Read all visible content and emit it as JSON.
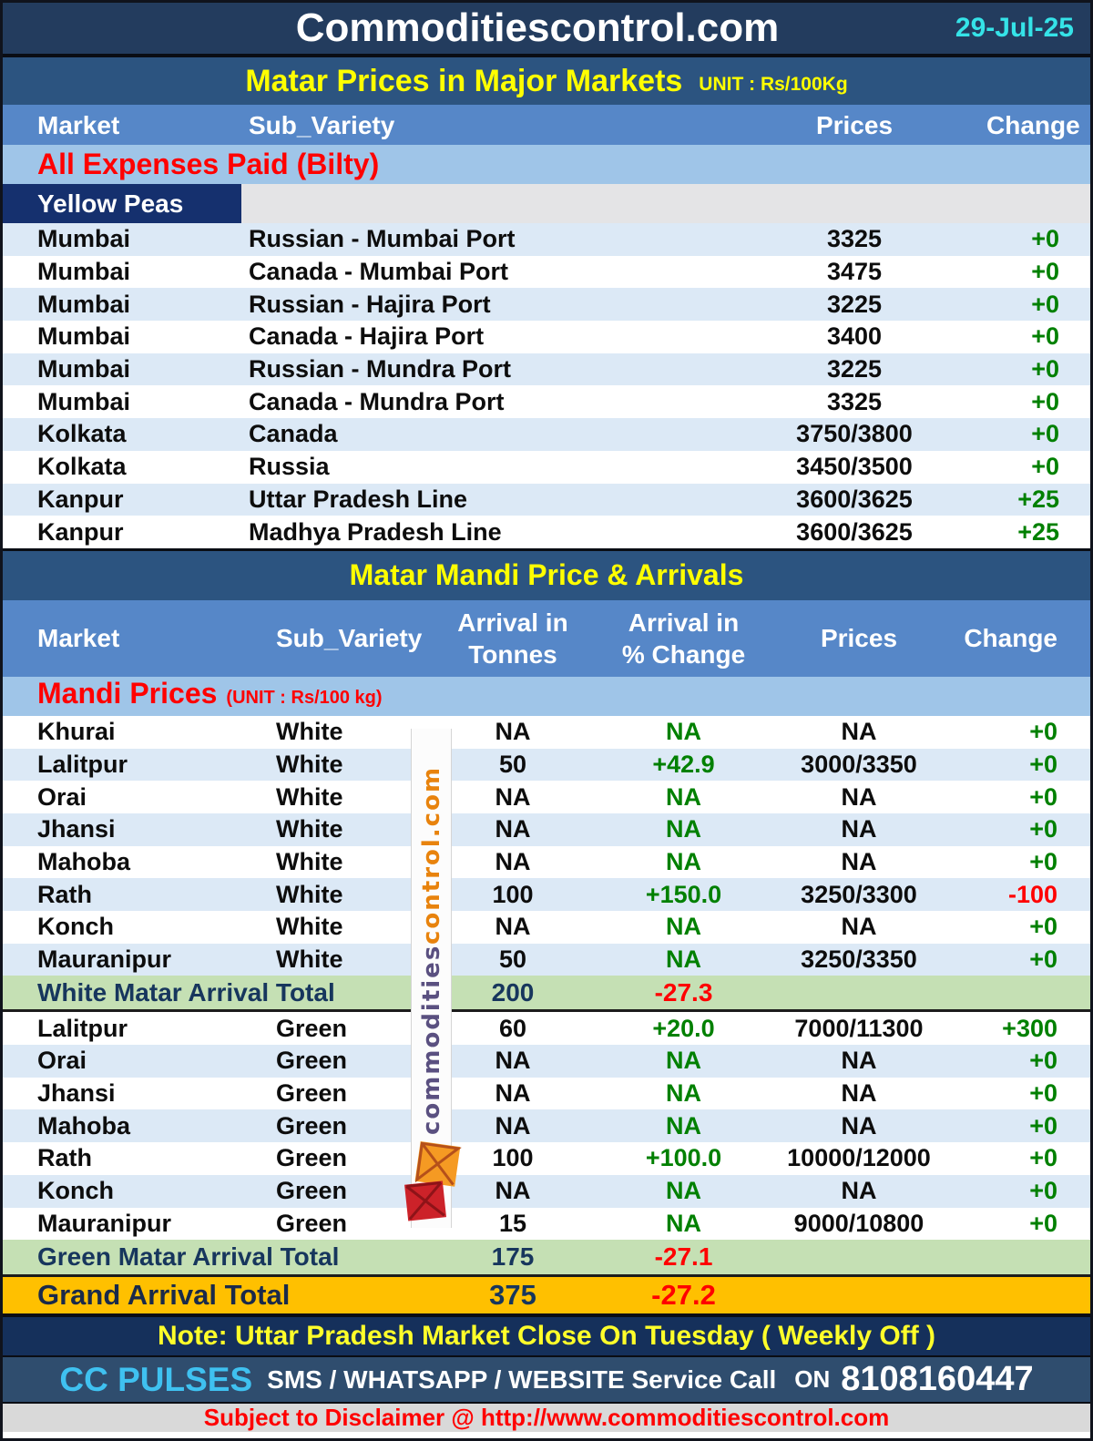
{
  "header": {
    "brand": "Commoditiescontrol.com",
    "date": "29-Jul-25"
  },
  "table1": {
    "title": "Matar Prices in Major Markets",
    "unit": "UNIT : Rs/100Kg",
    "columns": [
      "Market",
      "Sub_Variety",
      "Prices",
      "Change"
    ],
    "section_label": "All Expenses Paid (Bilty)",
    "variety_label": "Yellow Peas",
    "rows": [
      {
        "market": "Mumbai",
        "sub_variety": "Russian - Mumbai Port",
        "prices": "3325",
        "change": "+0"
      },
      {
        "market": "Mumbai",
        "sub_variety": "Canada - Mumbai Port",
        "prices": "3475",
        "change": "+0"
      },
      {
        "market": "Mumbai",
        "sub_variety": "Russian - Hajira Port",
        "prices": "3225",
        "change": "+0"
      },
      {
        "market": "Mumbai",
        "sub_variety": "Canada - Hajira Port",
        "prices": "3400",
        "change": "+0"
      },
      {
        "market": "Mumbai",
        "sub_variety": "Russian - Mundra Port",
        "prices": "3225",
        "change": "+0"
      },
      {
        "market": "Mumbai",
        "sub_variety": "Canada - Mundra Port",
        "prices": "3325",
        "change": "+0"
      },
      {
        "market": "Kolkata",
        "sub_variety": "Canada",
        "prices": "3750/3800",
        "change": "+0"
      },
      {
        "market": "Kolkata",
        "sub_variety": "Russia",
        "prices": "3450/3500",
        "change": "+0"
      },
      {
        "market": "Kanpur",
        "sub_variety": "Uttar Pradesh Line",
        "prices": "3600/3625",
        "change": "+25"
      },
      {
        "market": "Kanpur",
        "sub_variety": "Madhya Pradesh Line",
        "prices": "3600/3625",
        "change": "+25"
      }
    ]
  },
  "table2": {
    "title": "Matar Mandi Price & Arrivals",
    "columns": [
      "Market",
      "Sub_Variety",
      "Arrival in\nTonnes",
      "Arrival  in\n% Change",
      "Prices",
      "Change"
    ],
    "section_label": "Mandi Prices",
    "unit": "(UNIT : Rs/100 kg)",
    "white_rows": [
      {
        "market": "Khurai",
        "sub_variety": "White",
        "tonnes": "NA",
        "pct_change": "NA",
        "prices": "NA",
        "change": "+0"
      },
      {
        "market": "Lalitpur",
        "sub_variety": "White",
        "tonnes": "50",
        "pct_change": "+42.9",
        "prices": "3000/3350",
        "change": "+0"
      },
      {
        "market": "Orai",
        "sub_variety": "White",
        "tonnes": "NA",
        "pct_change": "NA",
        "prices": "NA",
        "change": "+0"
      },
      {
        "market": "Jhansi",
        "sub_variety": "White",
        "tonnes": "NA",
        "pct_change": "NA",
        "prices": "NA",
        "change": "+0"
      },
      {
        "market": "Mahoba",
        "sub_variety": "White",
        "tonnes": "NA",
        "pct_change": "NA",
        "prices": "NA",
        "change": "+0"
      },
      {
        "market": "Rath",
        "sub_variety": "White",
        "tonnes": "100",
        "pct_change": "+150.0",
        "prices": "3250/3300",
        "change": "-100"
      },
      {
        "market": "Konch",
        "sub_variety": "White",
        "tonnes": "NA",
        "pct_change": "NA",
        "prices": "NA",
        "change": "+0"
      },
      {
        "market": "Mauranipur",
        "sub_variety": "White",
        "tonnes": "50",
        "pct_change": "NA",
        "prices": "3250/3350",
        "change": "+0"
      }
    ],
    "white_total": {
      "label": "White Matar Arrival Total",
      "tonnes": "200",
      "pct_change": "-27.3"
    },
    "green_rows": [
      {
        "market": "Lalitpur",
        "sub_variety": "Green",
        "tonnes": "60",
        "pct_change": "+20.0",
        "prices": "7000/11300",
        "change": "+300"
      },
      {
        "market": "Orai",
        "sub_variety": "Green",
        "tonnes": "NA",
        "pct_change": "NA",
        "prices": "NA",
        "change": "+0"
      },
      {
        "market": "Jhansi",
        "sub_variety": "Green",
        "tonnes": "NA",
        "pct_change": "NA",
        "prices": "NA",
        "change": "+0"
      },
      {
        "market": "Mahoba",
        "sub_variety": "Green",
        "tonnes": "NA",
        "pct_change": "NA",
        "prices": "NA",
        "change": "+0"
      },
      {
        "market": "Rath",
        "sub_variety": "Green",
        "tonnes": "100",
        "pct_change": "+100.0",
        "prices": "10000/12000",
        "change": "+0"
      },
      {
        "market": "Konch",
        "sub_variety": "Green",
        "tonnes": "NA",
        "pct_change": "NA",
        "prices": "NA",
        "change": "+0"
      },
      {
        "market": "Mauranipur",
        "sub_variety": "Green",
        "tonnes": "15",
        "pct_change": "NA",
        "prices": "9000/10800",
        "change": "+0"
      }
    ],
    "green_total": {
      "label": "Green Matar Arrival Total",
      "tonnes": "175",
      "pct_change": "-27.1"
    },
    "grand_total": {
      "label": "Grand Arrival Total",
      "tonnes": "375",
      "pct_change": "-27.2"
    }
  },
  "note": "Note: Uttar Pradesh Market Close On Tuesday ( Weekly Off )",
  "footer": {
    "brand": "CC PULSES",
    "services": "SMS / WHATSAPP / WEBSITE Service Call",
    "on_label": "ON",
    "phone": "8108160447"
  },
  "disclaimer": "Subject to Disclaimer @  http://www.commoditiescontrol.com",
  "watermark": {
    "part1": "commodities",
    "part2": "control.com"
  },
  "colors": {
    "positive": "#008000",
    "negative": "#ff0000",
    "total_number": "#17365d",
    "accent_yellow": "#ffff00",
    "date_cyan": "#35e3e8",
    "grand_total_bg": "#ffc000",
    "total_bg": "#c5e0b4"
  }
}
